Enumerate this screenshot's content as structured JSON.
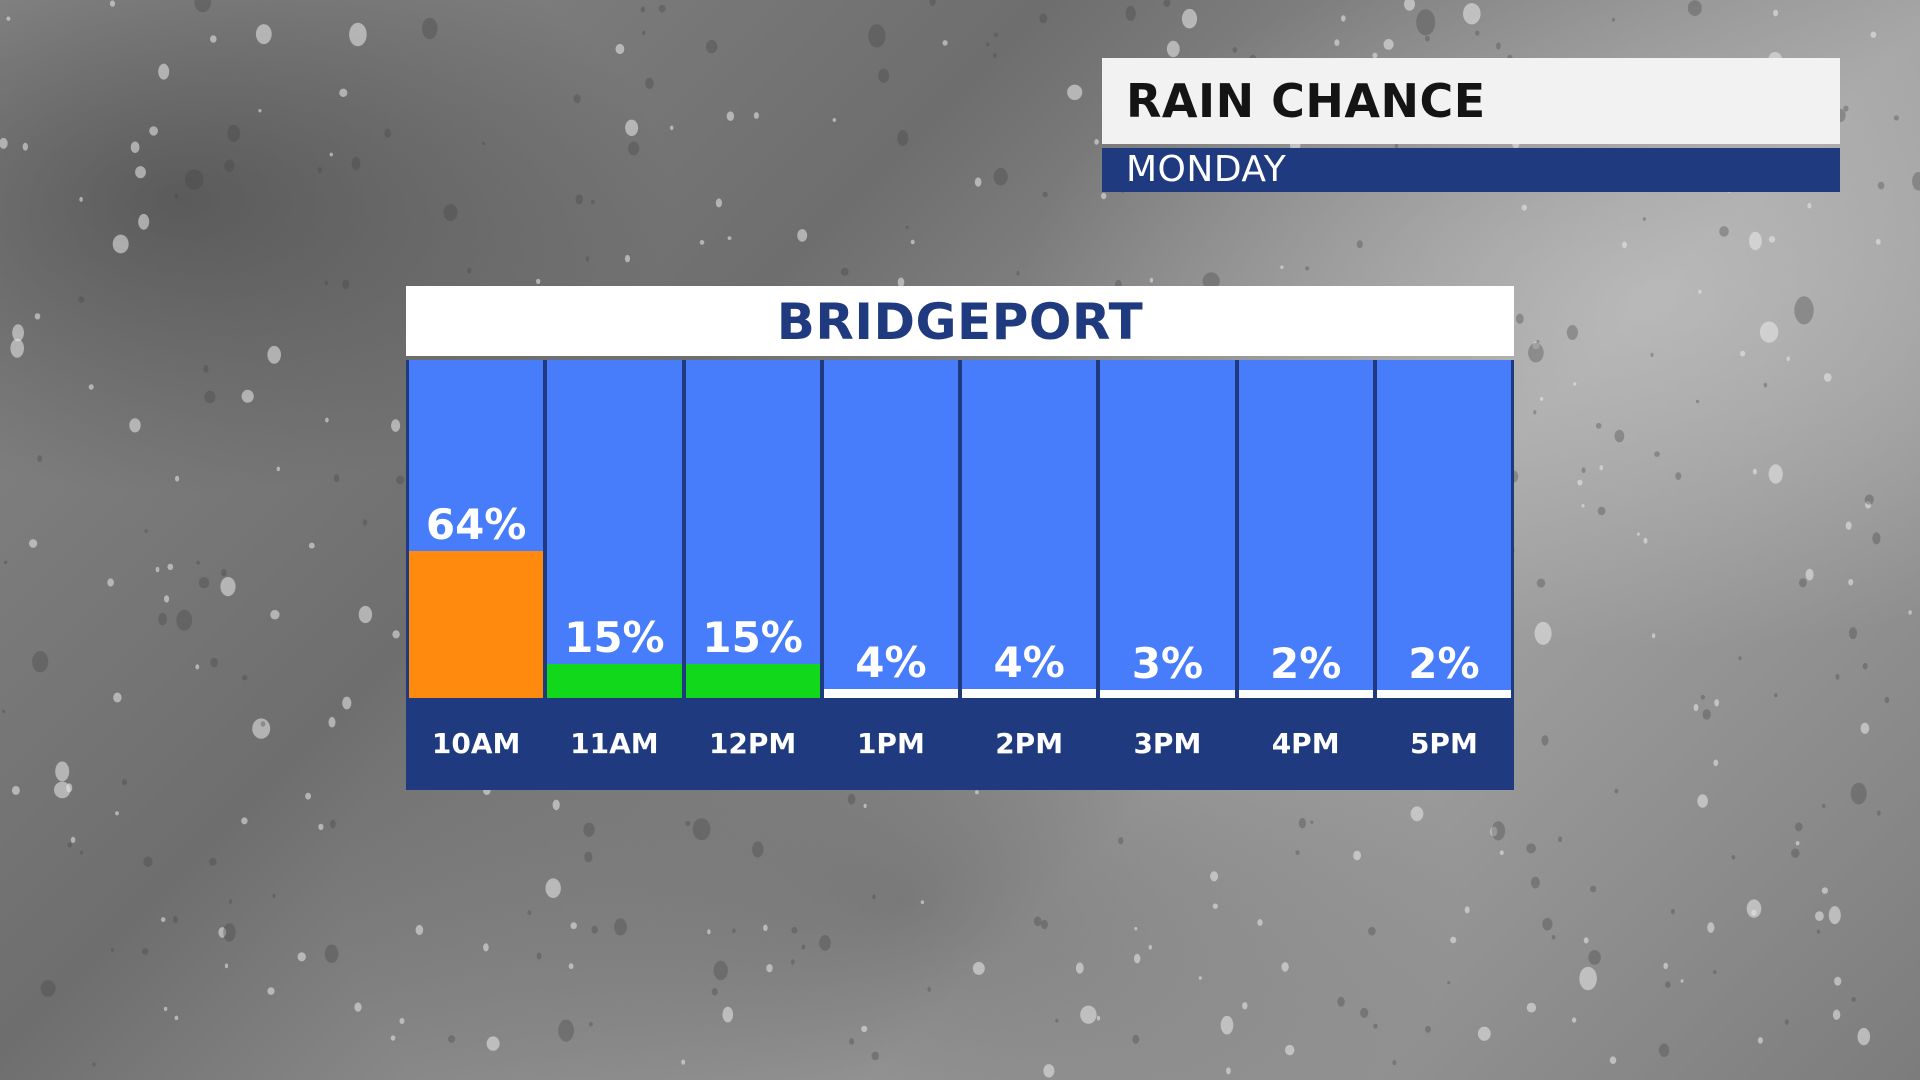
{
  "header": {
    "title": "RAIN CHANCE",
    "subtitle": "MONDAY"
  },
  "colors": {
    "plot_background": "#477cfb",
    "high": "#ff8a0d",
    "moderate": "#11d81b",
    "low": "#ffffff",
    "navy": "#1f3a7f"
  },
  "chart_data": {
    "type": "bar",
    "title": "BRIDGEPORT",
    "categories": [
      "10AM",
      "11AM",
      "12PM",
      "1PM",
      "2PM",
      "3PM",
      "4PM",
      "5PM"
    ],
    "values": [
      64,
      15,
      15,
      4,
      4,
      3,
      2,
      2
    ],
    "value_labels": [
      "64%",
      "15%",
      "15%",
      "4%",
      "4%",
      "3%",
      "2%",
      "2%"
    ],
    "bar_colors": [
      "#ff8a0d",
      "#11d81b",
      "#11d81b",
      "#ffffff",
      "#ffffff",
      "#ffffff",
      "#ffffff",
      "#ffffff"
    ],
    "ylim": [
      0,
      100
    ],
    "grid": false,
    "legend": "none"
  }
}
